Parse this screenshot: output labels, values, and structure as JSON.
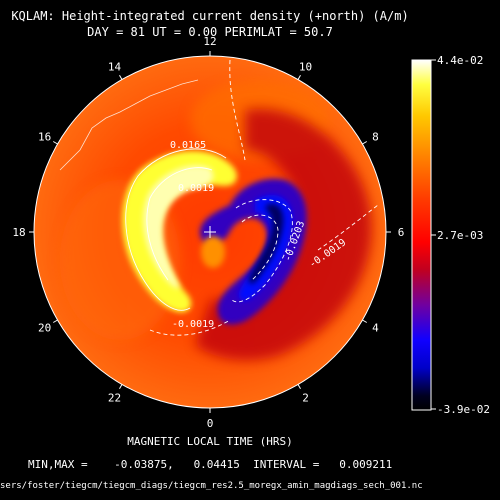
{
  "chart_data": {
    "type": "heatmap",
    "projection": "polar",
    "title_line1": "KQLAM: Height-integrated current density (+north) (A/m)",
    "title_line2": "DAY =  81   UT =  0.00   PERIMLAT =  50.7",
    "hour_labels": [
      "12",
      "10",
      "8",
      "6",
      "4",
      "2",
      "0",
      "22",
      "20",
      "18",
      "16",
      "14"
    ],
    "xlabel": "MAGNETIC LOCAL TIME (HRS)",
    "contour_labels": [
      "0.0165",
      "0.0019",
      "-0.0203",
      "-0.0019",
      "-0.0019"
    ],
    "colorbar": {
      "max_label": "4.4e-02",
      "mid_label": "2.7e-03",
      "min_label": "-3.9e-02",
      "min": -0.03875,
      "max": 0.04415
    },
    "stats_line": "MIN,MAX =    -0.03875,   0.04415  INTERVAL =   0.009211",
    "file_path": "sers/foster/tiegcm/tiegcm_diags/tiegcm_res2.5_moregx_amin_magdiags_sech_001.nc",
    "grid": false
  }
}
